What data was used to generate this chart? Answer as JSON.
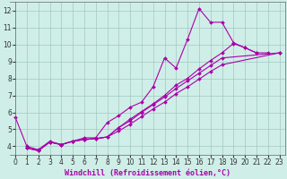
{
  "bg_color": "#d0eee8",
  "grid_color": "#a0c8c0",
  "line_color": "#aa00aa",
  "marker": "D",
  "markersize": 2.0,
  "linewidth": 0.8,
  "xlabel": "Windchill (Refroidissement éolien,°C)",
  "xlabel_fontsize": 6.0,
  "tick_fontsize": 5.5,
  "xlim": [
    -0.5,
    23.5
  ],
  "ylim": [
    3.5,
    12.5
  ],
  "yticks": [
    4,
    5,
    6,
    7,
    8,
    9,
    10,
    11,
    12
  ],
  "xticks": [
    0,
    1,
    2,
    3,
    4,
    5,
    6,
    7,
    8,
    9,
    10,
    11,
    12,
    13,
    14,
    15,
    16,
    17,
    18,
    19,
    20,
    21,
    22,
    23
  ],
  "series": [
    {
      "x": [
        0,
        1,
        2,
        3,
        4,
        5,
        6,
        7,
        8,
        9,
        10,
        11,
        12,
        13,
        14,
        15,
        16,
        17,
        18,
        19,
        20,
        21
      ],
      "y": [
        5.7,
        4.0,
        3.8,
        4.3,
        4.1,
        4.3,
        4.5,
        4.5,
        5.4,
        5.8,
        6.3,
        6.6,
        7.5,
        9.2,
        8.6,
        10.3,
        12.1,
        11.3,
        11.3,
        10.1,
        9.8,
        9.5
      ]
    },
    {
      "x": [
        1,
        2,
        3,
        4,
        5,
        6,
        7,
        8,
        9,
        10,
        11,
        12,
        13,
        14,
        15,
        16,
        17,
        18,
        19,
        20,
        21,
        22
      ],
      "y": [
        3.9,
        3.75,
        4.25,
        4.1,
        4.3,
        4.4,
        4.45,
        4.55,
        5.1,
        5.6,
        6.05,
        6.5,
        7.0,
        7.6,
        8.0,
        8.55,
        9.05,
        9.5,
        10.05,
        9.8,
        9.5,
        9.5
      ]
    },
    {
      "x": [
        1,
        2,
        3,
        4,
        5,
        6,
        7,
        8,
        9,
        10,
        11,
        12,
        13,
        14,
        15,
        16,
        17,
        18,
        23
      ],
      "y": [
        3.9,
        3.75,
        4.25,
        4.1,
        4.3,
        4.4,
        4.45,
        4.55,
        5.1,
        5.5,
        6.0,
        6.45,
        6.9,
        7.4,
        7.85,
        8.3,
        8.75,
        9.2,
        9.5
      ]
    },
    {
      "x": [
        1,
        2,
        3,
        4,
        5,
        6,
        7,
        8,
        9,
        10,
        11,
        12,
        13,
        14,
        15,
        16,
        17,
        18,
        23
      ],
      "y": [
        3.9,
        3.75,
        4.25,
        4.1,
        4.3,
        4.4,
        4.45,
        4.55,
        4.9,
        5.3,
        5.75,
        6.2,
        6.6,
        7.1,
        7.5,
        7.95,
        8.4,
        8.8,
        9.5
      ]
    }
  ]
}
